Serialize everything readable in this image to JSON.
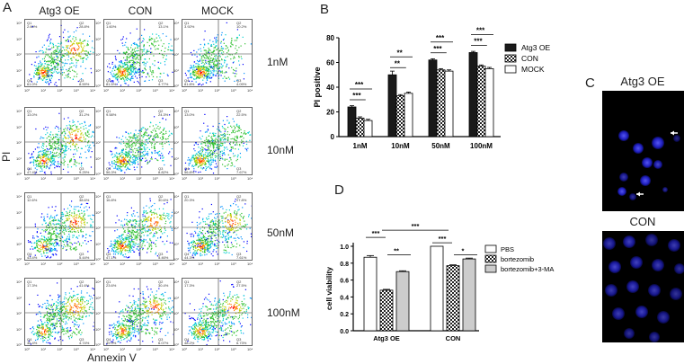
{
  "panels": {
    "A": "A",
    "B": "B",
    "C": "C",
    "D": "D"
  },
  "panel_a": {
    "columns": [
      "Atg3 OE",
      "CON",
      "MOCK"
    ],
    "rows": [
      "1nM",
      "10nM",
      "50nM",
      "100nM"
    ],
    "ylabel": "PI",
    "xlabel": "Annexin V",
    "quad_labels": [
      "Q1",
      "Q2",
      "Q3",
      "Q4"
    ],
    "quads": [
      [
        [
          "2.60%",
          "28.8%",
          "8.59%",
          "61.0%"
        ],
        [
          "1.60%",
          "13.1%",
          "4.77%",
          "81.5%"
        ],
        [
          "3.92%",
          "10.2%",
          "4.09%",
          "81.8%"
        ]
      ],
      [
        [
          "13.0%",
          "31.2%",
          "9.25%",
          "47.4%"
        ],
        [
          "9.58%",
          "24.3%",
          "8.82%",
          "56.3%"
        ],
        [
          "13.0%",
          "22.5%",
          "7.67%",
          "56.8%"
        ]
      ],
      [
        [
          "12.6%",
          "38.6%",
          "5.44%",
          "43.4%"
        ],
        [
          "16.8%",
          "30.6%",
          "5.46%",
          "47.1%"
        ],
        [
          "20.3%",
          "27.8%",
          "7.61%",
          "44.3%"
        ]
      ],
      [
        [
          "17.3%",
          "41.6%",
          "4.74%",
          "36.4%"
        ],
        [
          "23.6%",
          "30.4%",
          "6.07%",
          "39.9%"
        ],
        [
          "17.3%",
          "27.5%",
          "6.73%",
          "48.2%"
        ]
      ]
    ],
    "axis_ticks": [
      "10⁰",
      "10¹",
      "10²",
      "10³",
      "10⁴"
    ]
  },
  "chart_data": [
    {
      "type": "bar",
      "panel": "B",
      "ylabel": "PI positive",
      "categories": [
        "1nM",
        "10nM",
        "50nM",
        "100nM"
      ],
      "ylim": [
        0,
        80
      ],
      "yticks": [
        0,
        20,
        40,
        60,
        80
      ],
      "legend_position": "right",
      "series": [
        {
          "name": "Atg3 OE",
          "values": [
            24,
            50,
            62,
            68
          ],
          "errors": [
            1,
            3,
            1,
            1
          ],
          "fill": "#1a1a1a"
        },
        {
          "name": "CON",
          "values": [
            15,
            33,
            54,
            57
          ],
          "errors": [
            1,
            1,
            1,
            1
          ],
          "fill": "checker"
        },
        {
          "name": "MOCK",
          "values": [
            13,
            35,
            53,
            55
          ],
          "errors": [
            1,
            1,
            1,
            1
          ],
          "fill": "#ffffff"
        }
      ],
      "significance": [
        {
          "category": 0,
          "labels": [
            "***",
            "***"
          ]
        },
        {
          "category": 1,
          "labels": [
            "**",
            "**"
          ]
        },
        {
          "category": 2,
          "labels": [
            "***",
            "***"
          ]
        },
        {
          "category": 3,
          "labels": [
            "***",
            "***"
          ]
        }
      ]
    },
    {
      "type": "bar",
      "panel": "D",
      "ylabel": "cell viability",
      "categories": [
        "Atg3 OE",
        "CON"
      ],
      "ylim": [
        0,
        1.0
      ],
      "yticks": [
        0.0,
        0.2,
        0.4,
        0.6,
        0.8,
        1.0
      ],
      "ytick_labels": [
        "0.0",
        "0.2",
        "0.4",
        "0.6",
        "0.8",
        "1.0"
      ],
      "legend_position": "right",
      "series": [
        {
          "name": "PBS",
          "values": [
            0.87,
            1.0
          ],
          "errors": [
            0.02,
            0.0
          ],
          "fill": "#ffffff"
        },
        {
          "name": "bortezomib",
          "values": [
            0.48,
            0.77
          ],
          "errors": [
            0.01,
            0.01
          ],
          "fill": "checker"
        },
        {
          "name": "bortezomib+3-MA",
          "values": [
            0.7,
            0.85
          ],
          "errors": [
            0.01,
            0.01
          ],
          "fill": "#cccccc"
        }
      ],
      "significance": [
        {
          "group": 0,
          "labels": [
            "***",
            "**"
          ]
        },
        {
          "group": 1,
          "labels": [
            "***",
            "*"
          ]
        },
        {
          "between_groups": "***"
        }
      ]
    }
  ],
  "panel_c": {
    "top_title": "Atg3 OE",
    "bottom_title": "CON"
  }
}
